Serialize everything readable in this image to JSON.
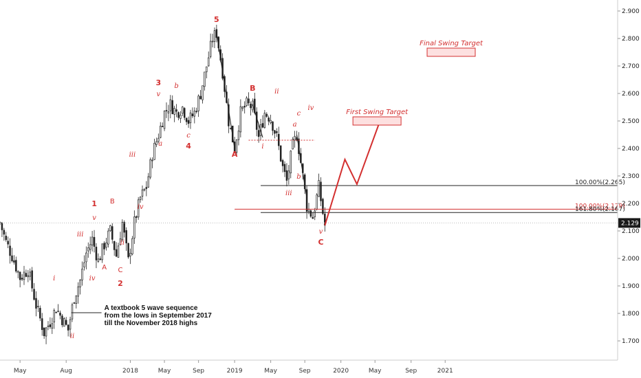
{
  "colors": {
    "accent": "#d32f2f",
    "candle_up": "#ffffff",
    "candle_down": "#222222",
    "target_fill": "#fde0e0",
    "price_badge": "#1a1a1a"
  },
  "chart_data": {
    "type": "candlestick",
    "grid": false,
    "y_axis_side": "right",
    "ylim": [
      1.63,
      2.94
    ],
    "yticks": [
      "1.700",
      "1.800",
      "1.900",
      "2.000",
      "2.100",
      "2.200",
      "2.300",
      "2.400",
      "2.500",
      "2.600",
      "2.700",
      "2.800",
      "2.900"
    ],
    "ytick_values": [
      1.7,
      1.8,
      1.9,
      2.0,
      2.1,
      2.2,
      2.3,
      2.4,
      2.5,
      2.6,
      2.7,
      2.8,
      2.9
    ],
    "xlim_weeks": [
      0,
      308
    ],
    "xticks": [
      {
        "label": "May",
        "week": 10
      },
      {
        "label": "Aug",
        "week": 33
      },
      {
        "label": "2018",
        "week": 65
      },
      {
        "label": "May",
        "week": 82
      },
      {
        "label": "Sep",
        "week": 99
      },
      {
        "label": "2019",
        "week": 117
      },
      {
        "label": "May",
        "week": 135
      },
      {
        "label": "Sep",
        "week": 152
      },
      {
        "label": "2020",
        "week": 170
      },
      {
        "label": "May",
        "week": 187
      },
      {
        "label": "Sep",
        "week": 205
      },
      {
        "label": "2021",
        "week": 222
      }
    ],
    "current_price": "2.129",
    "price_path": [
      [
        0,
        2.13
      ],
      [
        3,
        2.06
      ],
      [
        6,
        2.01
      ],
      [
        10,
        1.93
      ],
      [
        14,
        1.96
      ],
      [
        18,
        1.83
      ],
      [
        22,
        1.73
      ],
      [
        25,
        1.77
      ],
      [
        28,
        1.82
      ],
      [
        31,
        1.78
      ],
      [
        34,
        1.74
      ],
      [
        37,
        1.86
      ],
      [
        40,
        1.92
      ],
      [
        43,
        2.02
      ],
      [
        46,
        2.07
      ],
      [
        49,
        1.99
      ],
      [
        52,
        2.05
      ],
      [
        55,
        2.1
      ],
      [
        58,
        2.01
      ],
      [
        61,
        2.13
      ],
      [
        64,
        1.99
      ],
      [
        67,
        2.13
      ],
      [
        70,
        2.22
      ],
      [
        73,
        2.26
      ],
      [
        76,
        2.38
      ],
      [
        79,
        2.45
      ],
      [
        82,
        2.53
      ],
      [
        85,
        2.56
      ],
      [
        88,
        2.53
      ],
      [
        91,
        2.55
      ],
      [
        94,
        2.5
      ],
      [
        97,
        2.53
      ],
      [
        100,
        2.6
      ],
      [
        103,
        2.7
      ],
      [
        106,
        2.8
      ],
      [
        108,
        2.82
      ],
      [
        111,
        2.68
      ],
      [
        114,
        2.5
      ],
      [
        117,
        2.4
      ],
      [
        120,
        2.53
      ],
      [
        123,
        2.56
      ],
      [
        126,
        2.55
      ],
      [
        129,
        2.44
      ],
      [
        132,
        2.53
      ],
      [
        135,
        2.51
      ],
      [
        138,
        2.44
      ],
      [
        141,
        2.33
      ],
      [
        143,
        2.28
      ],
      [
        146,
        2.41
      ],
      [
        148,
        2.45
      ],
      [
        151,
        2.3
      ],
      [
        153,
        2.19
      ],
      [
        156,
        2.15
      ],
      [
        159,
        2.26
      ],
      [
        162,
        2.12
      ]
    ],
    "projection": [
      [
        162,
        2.12
      ],
      [
        172,
        2.36
      ],
      [
        178,
        2.27
      ],
      [
        189,
        2.49
      ]
    ],
    "wave_labels": [
      {
        "text": "5",
        "week": 108,
        "price": 2.86,
        "style": "major"
      },
      {
        "text": "3",
        "week": 79,
        "price": 2.63,
        "style": "major"
      },
      {
        "text": "v",
        "week": 79,
        "price": 2.59,
        "style": "minor"
      },
      {
        "text": "b",
        "week": 88,
        "price": 2.62,
        "style": "minor"
      },
      {
        "text": "a",
        "week": 80,
        "price": 2.41,
        "style": "minor"
      },
      {
        "text": "c",
        "week": 94,
        "price": 2.44,
        "style": "minor"
      },
      {
        "text": "4",
        "week": 94,
        "price": 2.4,
        "style": "major"
      },
      {
        "text": "iii",
        "week": 66,
        "price": 2.37,
        "style": "minor"
      },
      {
        "text": "iv",
        "week": 70,
        "price": 2.18,
        "style": "minor"
      },
      {
        "text": "1",
        "week": 47,
        "price": 2.19,
        "style": "major"
      },
      {
        "text": "v",
        "week": 47,
        "price": 2.14,
        "style": "minor"
      },
      {
        "text": "iii",
        "week": 40,
        "price": 2.08,
        "style": "minor"
      },
      {
        "text": "iv",
        "week": 46,
        "price": 1.92,
        "style": "minor"
      },
      {
        "text": "i",
        "week": 27,
        "price": 1.92,
        "style": "minor"
      },
      {
        "text": "ii",
        "week": 36,
        "price": 1.71,
        "style": "minor"
      },
      {
        "text": "B",
        "week": 56,
        "price": 2.2,
        "style": "plain"
      },
      {
        "text": "ii",
        "week": 61,
        "price": 2.05,
        "style": "minor"
      },
      {
        "text": "A",
        "week": 52,
        "price": 1.96,
        "style": "plain"
      },
      {
        "text": "C",
        "week": 60,
        "price": 1.95,
        "style": "plain"
      },
      {
        "text": "2",
        "week": 60,
        "price": 1.9,
        "style": "major"
      },
      {
        "text": "A",
        "week": 117,
        "price": 2.37,
        "style": "major"
      },
      {
        "text": "B",
        "week": 126,
        "price": 2.61,
        "style": "major"
      },
      {
        "text": "ii",
        "week": 138,
        "price": 2.6,
        "style": "minor"
      },
      {
        "text": "i",
        "week": 131,
        "price": 2.4,
        "style": "minor"
      },
      {
        "text": "a",
        "week": 147,
        "price": 2.48,
        "style": "minor"
      },
      {
        "text": "c",
        "week": 149,
        "price": 2.52,
        "style": "minor"
      },
      {
        "text": "iv",
        "week": 155,
        "price": 2.54,
        "style": "minor"
      },
      {
        "text": "b",
        "week": 149,
        "price": 2.29,
        "style": "minor"
      },
      {
        "text": "iii",
        "week": 144,
        "price": 2.23,
        "style": "minor"
      },
      {
        "text": "v",
        "week": 160,
        "price": 2.09,
        "style": "minor"
      },
      {
        "text": "C",
        "week": 160,
        "price": 2.05,
        "style": "major"
      }
    ],
    "fib_levels": [
      {
        "label": "100.00%(2.265)",
        "price": 2.265,
        "color": "#222222",
        "from_week": 130
      },
      {
        "label": "100.00%(2.179)",
        "price": 2.179,
        "color": "#d32f2f",
        "from_week": 117
      },
      {
        "label": "161.80%(2.167)",
        "price": 2.167,
        "color": "#222222",
        "from_week": 130
      }
    ],
    "b_dotted_level": {
      "price": 2.43,
      "from_week": 124,
      "to_week": 157
    },
    "targets": [
      {
        "label": "First Swing Target",
        "price_low": 2.485,
        "price_high": 2.515,
        "from_week": 176,
        "to_week": 200
      },
      {
        "label": "Final Swing Target",
        "price_low": 2.735,
        "price_high": 2.765,
        "from_week": 213,
        "to_week": 237
      }
    ],
    "annotation": {
      "lines": [
        "A textbook 5 wave sequence",
        "from the lows in September 2017",
        "till the November 2018 highs"
      ],
      "week": 52,
      "price": 1.78
    }
  }
}
